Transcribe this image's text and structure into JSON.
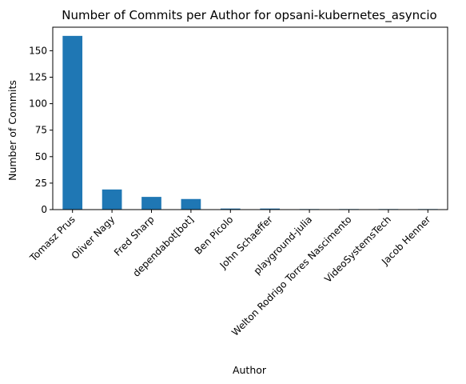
{
  "chart_data": {
    "type": "bar",
    "title": "Number of Commits per Author for opsani-kubernetes_asyncio",
    "xlabel": "Author",
    "ylabel": "Number of Commits",
    "categories": [
      "Tomasz Prus",
      "Oliver Nagy",
      "Fred Sharp",
      "dependabot[bot]",
      "Ben Picolo",
      "John Schaeffer",
      "playground-julia",
      "Welton Rodrigo Torres Nascimento",
      "VideoSystemsTech",
      "Jacob Henner"
    ],
    "values": [
      164,
      19,
      12,
      10,
      1,
      1,
      0.5,
      0.5,
      0.5,
      0.5
    ],
    "ylim": [
      0,
      172.2
    ],
    "yticks": [
      0,
      25,
      50,
      75,
      100,
      125,
      150
    ],
    "grid": false,
    "legend": "none",
    "colors": {
      "bar": "#1f77b4",
      "axis": "#000000",
      "background": "#ffffff"
    }
  }
}
